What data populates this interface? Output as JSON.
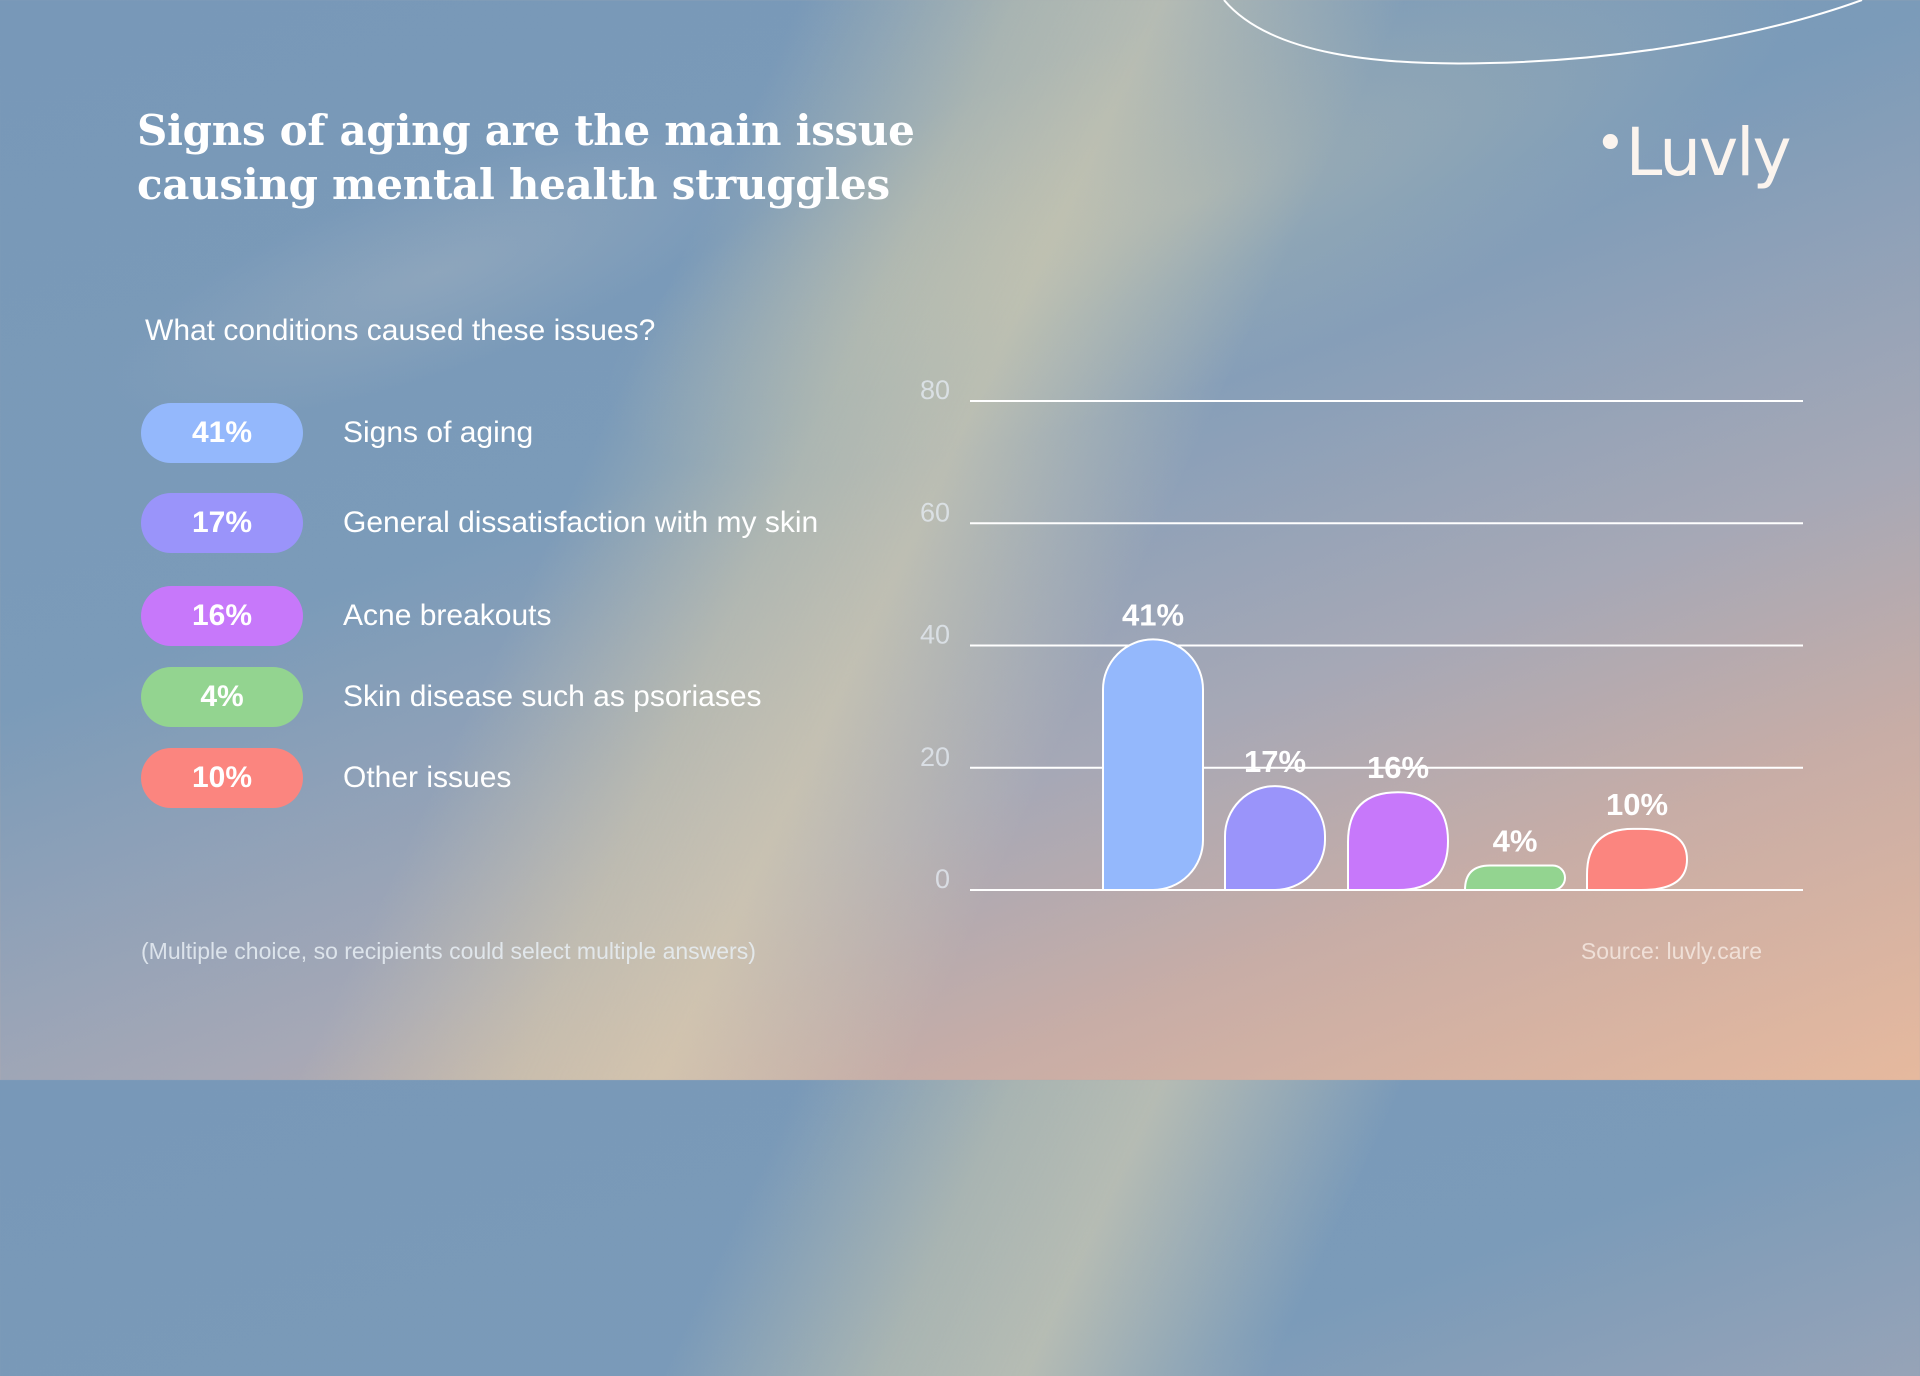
{
  "title": {
    "line1": "Signs of aging are the main issue",
    "line2": "causing mental health struggles"
  },
  "logo": {
    "dot": "•",
    "text": "Luvly"
  },
  "question": "What conditions caused these issues?",
  "items": [
    {
      "percent": "41%",
      "label": "Signs of aging",
      "color": "#94b8fc"
    },
    {
      "percent": "17%",
      "label": "General dissatisfaction with my skin",
      "color": "#9a94fa"
    },
    {
      "percent": "16%",
      "label": "Acne breakouts",
      "color": "#c778fa"
    },
    {
      "percent": "4%",
      "label": "Skin disease such as psoriases",
      "color": "#93d490"
    },
    {
      "percent": "10%",
      "label": "Other issues",
      "color": "#fb857f"
    }
  ],
  "footnote": "(Multiple choice, so recipients could select multiple answers)",
  "source": "Source: luvly.care",
  "chart_data": {
    "type": "bar",
    "title": "",
    "xlabel": "",
    "ylabel": "",
    "categories": [
      "Signs of aging",
      "General dissatisfaction with my skin",
      "Acne breakouts",
      "Skin disease such as psoriases",
      "Other issues"
    ],
    "values": [
      41,
      17,
      16,
      4,
      10
    ],
    "value_labels": [
      "41%",
      "17%",
      "16%",
      "4%",
      "10%"
    ],
    "colors": [
      "#94b8fc",
      "#9a94fa",
      "#c778fa",
      "#93d490",
      "#fb857f"
    ],
    "ylim": [
      0,
      80
    ],
    "yticks": [
      0,
      20,
      40,
      60,
      80
    ],
    "ytick_labels": [
      "0",
      "20",
      "40",
      "60",
      "80"
    ],
    "grid": true,
    "legend": "none"
  }
}
